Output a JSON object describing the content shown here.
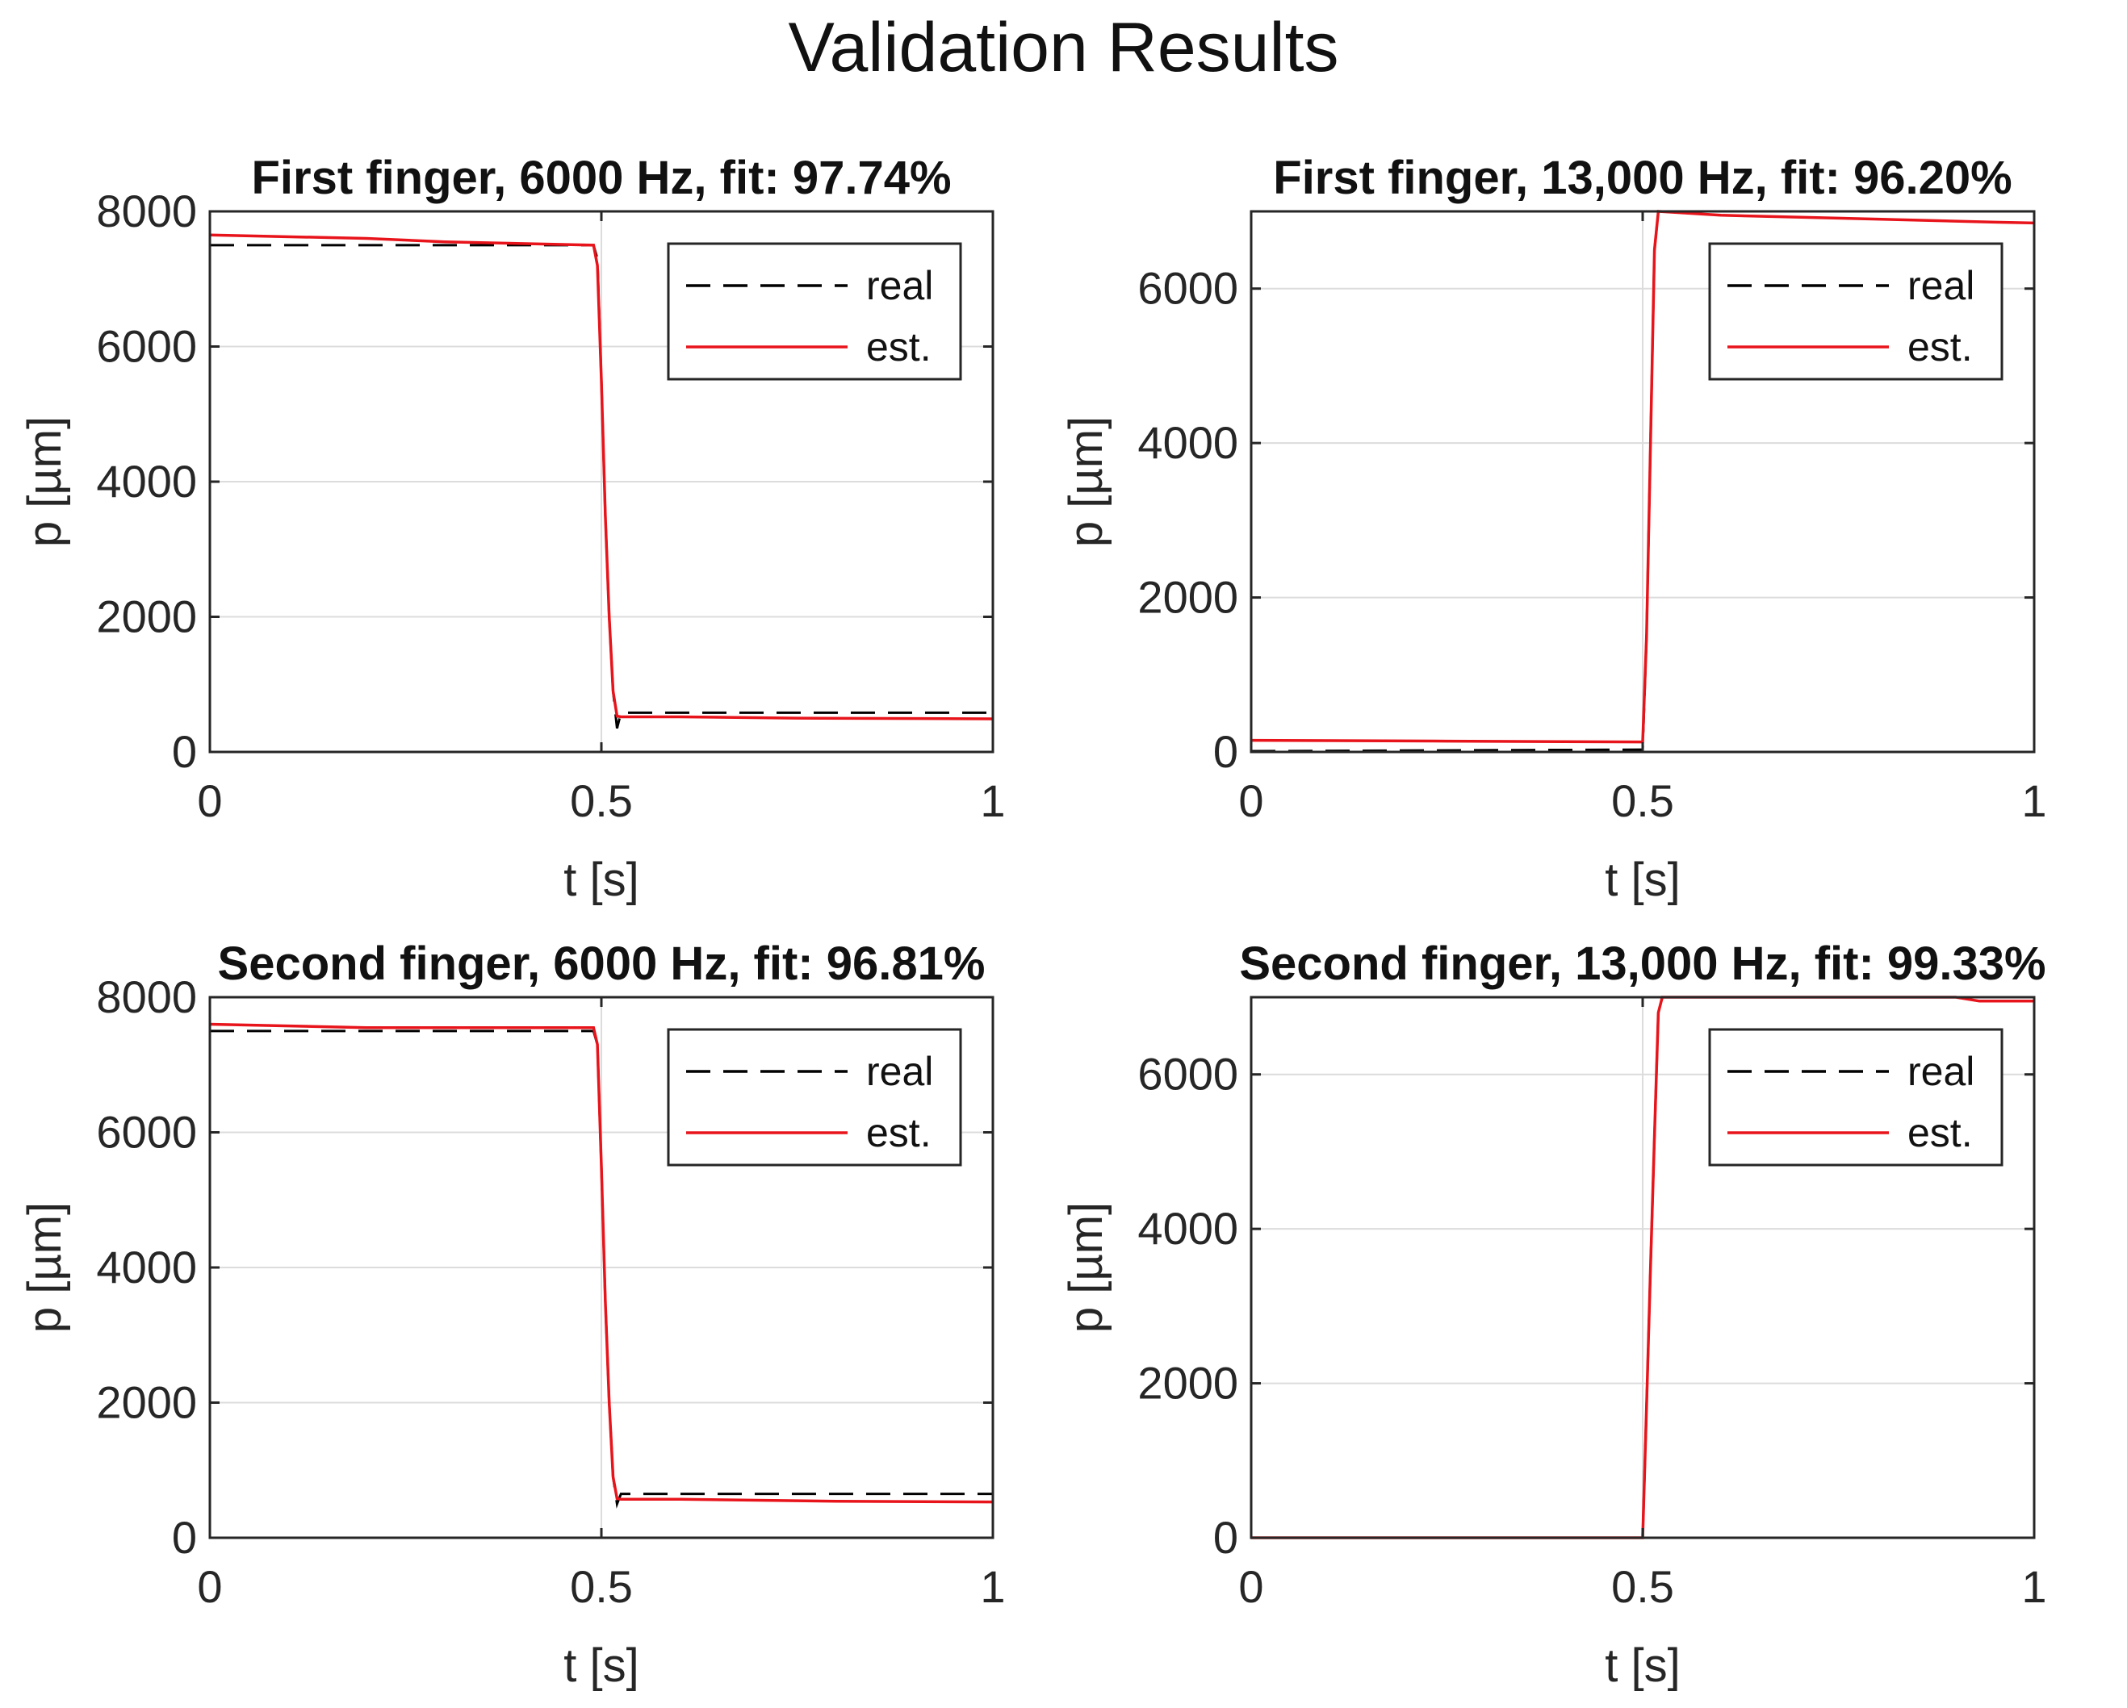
{
  "figure": {
    "title": "Validation Results"
  },
  "colors": {
    "real": "#000000",
    "est": "#e8141b",
    "grid": "#dcdcdc",
    "axes": "#262626"
  },
  "chart_data": [
    {
      "type": "line",
      "title": "First finger, 6000 Hz, fit: 97.74%",
      "xlabel": "t [s]",
      "ylabel": "p [µm]",
      "xlim": [
        0,
        1
      ],
      "ylim": [
        0,
        8000
      ],
      "xticks": [
        0,
        0.5,
        1
      ],
      "xtick_labels": [
        "0",
        "0.5",
        "1"
      ],
      "yticks": [
        0,
        2000,
        4000,
        6000,
        8000
      ],
      "ytick_labels": [
        "0",
        "2000",
        "4000",
        "6000",
        "8000"
      ],
      "grid": true,
      "legend": {
        "location": "top-right",
        "entries": [
          "real",
          "est."
        ]
      },
      "series": [
        {
          "name": "real",
          "style": "dashed",
          "x": [
            0,
            0.49,
            0.495,
            0.5,
            0.505,
            0.51,
            0.515,
            0.52,
            0.525,
            0.53,
            1
          ],
          "y": [
            7500,
            7500,
            7300,
            5500,
            3500,
            2000,
            900,
            350,
            580,
            580,
            580
          ]
        },
        {
          "name": "est.",
          "style": "solid",
          "x": [
            0,
            0.2,
            0.3,
            0.49,
            0.495,
            0.5,
            0.505,
            0.51,
            0.515,
            0.52,
            0.525,
            0.6,
            0.75,
            1
          ],
          "y": [
            7650,
            7600,
            7550,
            7500,
            7200,
            5500,
            3500,
            2000,
            900,
            530,
            520,
            520,
            500,
            490
          ]
        }
      ]
    },
    {
      "type": "line",
      "title": "First finger, 13,000 Hz, fit: 96.20%",
      "xlabel": "t [s]",
      "ylabel": "p [µm]",
      "xlim": [
        0,
        1
      ],
      "ylim": [
        0,
        7000
      ],
      "xticks": [
        0,
        0.5,
        1
      ],
      "xtick_labels": [
        "0",
        "0.5",
        "1"
      ],
      "yticks": [
        0,
        2000,
        4000,
        6000
      ],
      "ytick_labels": [
        "0",
        "2000",
        "4000",
        "6000"
      ],
      "grid": true,
      "legend": {
        "location": "top-right",
        "entries": [
          "real",
          "est."
        ]
      },
      "series": [
        {
          "name": "real",
          "style": "dashed",
          "x": [
            0,
            0.5,
            0.505,
            0.51,
            0.515,
            0.52,
            0.525,
            1
          ],
          "y": [
            10,
            30,
            1500,
            4000,
            6500,
            7000,
            7000,
            7000
          ]
        },
        {
          "name": "est.",
          "style": "solid",
          "x": [
            0,
            0.25,
            0.5,
            0.505,
            0.51,
            0.515,
            0.52,
            0.6,
            0.8,
            0.95,
            1
          ],
          "y": [
            150,
            140,
            130,
            1500,
            4000,
            6500,
            7000,
            6950,
            6900,
            6860,
            6850
          ]
        }
      ]
    },
    {
      "type": "line",
      "title": "Second finger, 6000 Hz, fit: 96.81%",
      "xlabel": "t [s]",
      "ylabel": "p [µm]",
      "xlim": [
        0,
        1
      ],
      "ylim": [
        0,
        8000
      ],
      "xticks": [
        0,
        0.5,
        1
      ],
      "xtick_labels": [
        "0",
        "0.5",
        "1"
      ],
      "yticks": [
        0,
        2000,
        4000,
        6000,
        8000
      ],
      "ytick_labels": [
        "0",
        "2000",
        "4000",
        "6000",
        "8000"
      ],
      "grid": true,
      "legend": {
        "location": "top-right",
        "entries": [
          "real",
          "est."
        ]
      },
      "series": [
        {
          "name": "real",
          "style": "dashed",
          "x": [
            0,
            0.49,
            0.495,
            0.5,
            0.505,
            0.51,
            0.515,
            0.52,
            0.525,
            0.53,
            1
          ],
          "y": [
            7500,
            7500,
            7300,
            5500,
            3500,
            2000,
            900,
            500,
            650,
            650,
            650
          ]
        },
        {
          "name": "est.",
          "style": "solid",
          "x": [
            0,
            0.2,
            0.49,
            0.495,
            0.5,
            0.505,
            0.51,
            0.515,
            0.52,
            0.525,
            0.6,
            0.8,
            1
          ],
          "y": [
            7600,
            7550,
            7550,
            7300,
            5500,
            3500,
            2000,
            900,
            580,
            570,
            570,
            540,
            530
          ]
        }
      ]
    },
    {
      "type": "line",
      "title": "Second finger, 13,000 Hz, fit: 99.33%",
      "xlabel": "t [s]",
      "ylabel": "p [µm]",
      "xlim": [
        0,
        1
      ],
      "ylim": [
        0,
        7000
      ],
      "xticks": [
        0,
        0.5,
        1
      ],
      "xtick_labels": [
        "0",
        "0.5",
        "1"
      ],
      "yticks": [
        0,
        2000,
        4000,
        6000
      ],
      "ytick_labels": [
        "0",
        "2000",
        "4000",
        "6000"
      ],
      "grid": true,
      "legend": {
        "location": "top-right",
        "entries": [
          "real",
          "est."
        ]
      },
      "series": [
        {
          "name": "real",
          "style": "dashed",
          "x": [
            0,
            0.5,
            0.505,
            0.51,
            0.515,
            0.52,
            0.525,
            1
          ],
          "y": [
            0,
            0,
            1700,
            3500,
            5200,
            6800,
            7000,
            7000
          ]
        },
        {
          "name": "est.",
          "style": "solid",
          "x": [
            0,
            0.5,
            0.505,
            0.51,
            0.515,
            0.52,
            0.525,
            0.9,
            0.93,
            1
          ],
          "y": [
            0,
            0,
            1700,
            3500,
            5200,
            6800,
            7000,
            7000,
            6950,
            6950
          ]
        }
      ]
    }
  ]
}
